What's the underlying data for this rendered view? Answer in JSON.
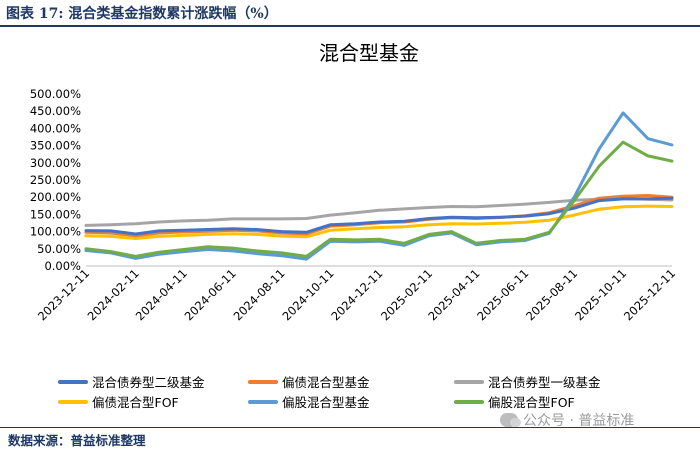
{
  "header": {
    "title": "图表 17:  混合类基金指数累计涨跌幅（%）"
  },
  "footer": {
    "source": "数据来源：普益标准整理"
  },
  "watermark": {
    "text": "公众号 · 普益标准"
  },
  "chart_data": {
    "type": "line",
    "title": "混合型基金",
    "xlabel": "",
    "ylabel": "",
    "ylim": [
      0,
      500
    ],
    "yticks": [
      0,
      50,
      100,
      150,
      200,
      250,
      300,
      350,
      400,
      450,
      500
    ],
    "ytick_labels": [
      "0.00%",
      "50.00%",
      "100.00%",
      "150.00%",
      "200.00%",
      "250.00%",
      "300.00%",
      "350.00%",
      "400.00%",
      "450.00%",
      "500.00%"
    ],
    "x": [
      "2023-12-11",
      "2024-01-11",
      "2024-02-11",
      "2024-03-11",
      "2024-04-11",
      "2024-05-11",
      "2024-06-11",
      "2024-07-11",
      "2024-08-11",
      "2024-09-11",
      "2024-10-11",
      "2024-11-11",
      "2024-12-11",
      "2025-01-11",
      "2025-02-11",
      "2025-03-11",
      "2025-04-11",
      "2025-05-11",
      "2025-06-11",
      "2025-07-11",
      "2025-08-11",
      "2025-09-11",
      "2025-10-11",
      "2025-11-11",
      "2025-12-11"
    ],
    "xtick_labels": [
      "2023-12-11",
      "2024-02-11",
      "2024-04-11",
      "2024-06-11",
      "2024-08-11",
      "2024-10-11",
      "2024-12-11",
      "2025-02-11",
      "2025-04-11",
      "2025-06-11",
      "2025-08-11",
      "2025-10-11",
      "2025-12-11"
    ],
    "legend_position": "bottom",
    "series": [
      {
        "name": "混合债券型二级基金",
        "color": "#4472c4",
        "values": [
          103,
          102,
          93,
          102,
          104,
          106,
          108,
          106,
          100,
          98,
          120,
          123,
          128,
          130,
          138,
          142,
          140,
          142,
          145,
          152,
          168,
          190,
          195,
          195,
          197
        ]
      },
      {
        "name": "偏债混合型基金",
        "color": "#ed7d31",
        "values": [
          98,
          96,
          88,
          96,
          99,
          101,
          104,
          102,
          96,
          93,
          116,
          120,
          126,
          128,
          136,
          140,
          138,
          141,
          146,
          155,
          175,
          197,
          203,
          205,
          200
        ]
      },
      {
        "name": "混合债券型一级基金",
        "color": "#a5a5a5",
        "values": [
          118,
          120,
          123,
          128,
          131,
          133,
          137,
          137,
          137,
          138,
          148,
          155,
          162,
          166,
          170,
          173,
          172,
          176,
          180,
          185,
          191,
          194,
          196,
          194,
          192
        ]
      },
      {
        "name": "偏债混合型FOF",
        "color": "#ffc000",
        "values": [
          88,
          86,
          80,
          86,
          89,
          92,
          94,
          92,
          87,
          85,
          104,
          108,
          112,
          114,
          120,
          123,
          122,
          124,
          127,
          133,
          148,
          165,
          172,
          174,
          173
        ]
      },
      {
        "name": "偏股混合型基金",
        "color": "#5b9bd5",
        "values": [
          45,
          38,
          22,
          34,
          42,
          48,
          44,
          36,
          30,
          20,
          72,
          70,
          72,
          60,
          88,
          96,
          62,
          70,
          74,
          95,
          200,
          340,
          445,
          370,
          352
        ]
      },
      {
        "name": "偏股混合型FOF",
        "color": "#70ad47",
        "values": [
          50,
          42,
          28,
          40,
          48,
          56,
          52,
          44,
          38,
          28,
          78,
          76,
          78,
          66,
          92,
          100,
          66,
          74,
          78,
          98,
          190,
          290,
          360,
          320,
          305
        ]
      }
    ]
  }
}
